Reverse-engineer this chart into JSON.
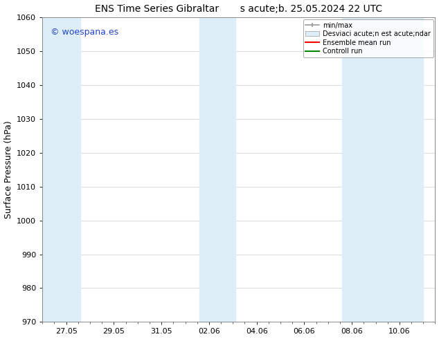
{
  "title": "ENS Time Series Gibraltar       s acute;b. 25.05.2024 22 UTC",
  "ylabel": "Surface Pressure (hPa)",
  "ylim": [
    970,
    1060
  ],
  "yticks": [
    970,
    980,
    990,
    1000,
    1010,
    1020,
    1030,
    1040,
    1050,
    1060
  ],
  "bg_color": "#ffffff",
  "plot_bg_color": "#ffffff",
  "shaded_band_color": "#ddeef8",
  "watermark_text": "© woespana.es",
  "watermark_color": "#2244cc",
  "legend_entries": [
    "min/max",
    "Desviaci acute;n est acute;ndar",
    "Ensemble mean run",
    "Controll run"
  ],
  "legend_line_colors": [
    "#999999",
    "#bbcde0",
    "#ff0000",
    "#008800"
  ],
  "x_tick_labels": [
    "27.05",
    "29.05",
    "31.05",
    "02.06",
    "04.06",
    "06.06",
    "08.06",
    "10.06"
  ],
  "font_color": "#000000",
  "title_fontsize": 10,
  "axis_label_fontsize": 9,
  "tick_fontsize": 8,
  "shaded_spans": [
    {
      "xmin": 0.0,
      "xmax": 0.17
    },
    {
      "xmin": 0.355,
      "xmax": 0.475
    },
    {
      "xmin": 0.71,
      "xmax": 0.835
    },
    {
      "xmin": 0.88,
      "xmax": 1.0
    }
  ]
}
